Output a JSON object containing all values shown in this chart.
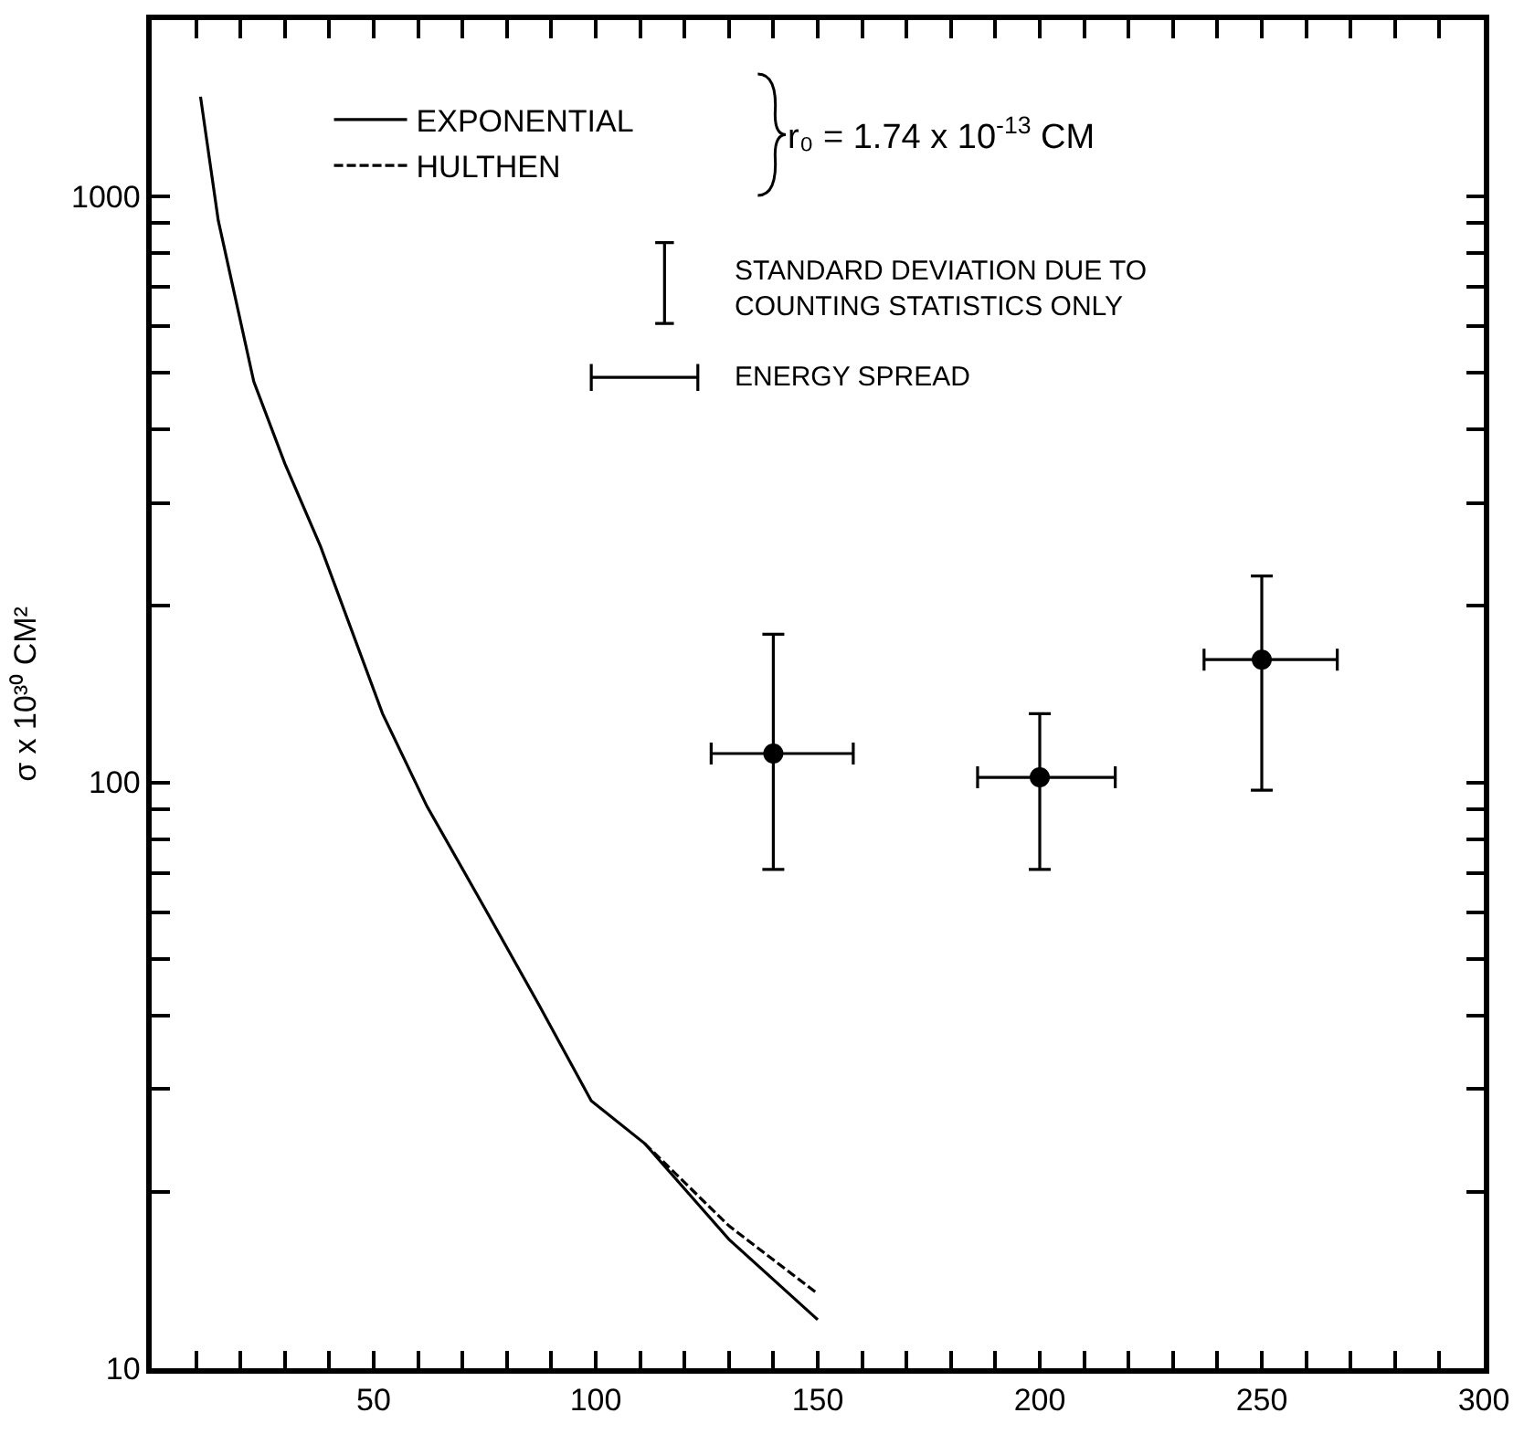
{
  "chart_data": {
    "type": "line",
    "xlabel": null,
    "ylabel": "σ x 10³⁰ CM²",
    "series": [
      {
        "name": "EXPONENTIAL",
        "color": "#000000",
        "line_style": "solid",
        "marker": "none",
        "x": [
          11,
          15,
          23,
          30,
          38,
          52,
          62,
          75,
          87,
          99,
          111,
          130,
          150
        ],
        "values": [
          1480,
          910,
          483,
          350,
          253,
          131,
          91,
          61,
          42,
          28.6,
          24.2,
          16.6,
          12.1
        ]
      },
      {
        "name": "HULTHEN",
        "color": "#000000",
        "line_style": "dashed",
        "marker": "none",
        "x": [
          111,
          130,
          150
        ],
        "values": [
          24.2,
          17.5,
          13.4
        ]
      },
      {
        "type": "scatter",
        "color": "#000000",
        "marker": "circle",
        "x": [
          140,
          200,
          250
        ],
        "values": [
          112,
          102,
          162
        ],
        "errors": [
          [
            71,
            179
          ],
          [
            71,
            131
          ],
          [
            97,
            225
          ]
        ],
        "xerrors": [
          [
            126,
            158
          ],
          [
            186,
            217
          ],
          [
            237,
            267
          ]
        ]
      }
    ],
    "annotations": [
      "r₀ = 1.74 x 10$^{-13}$ CM",
      "STANDARD DEVIATION DUE TO\nCOUNTING STATISTICS ONLY",
      "ENERGY SPREAD"
    ],
    "log": "y",
    "xlim": [
      0,
      300
    ],
    "xticks": [
      {
        "value": 10,
        "label": null
      },
      {
        "value": 20,
        "label": null
      },
      {
        "value": 30,
        "label": null
      },
      {
        "value": 40,
        "label": null
      },
      50,
      {
        "value": 60,
        "label": null
      },
      {
        "value": 70,
        "label": null
      },
      {
        "value": 80,
        "label": null
      },
      {
        "value": 90,
        "label": null
      },
      100,
      {
        "value": 110,
        "label": null
      },
      {
        "value": 120,
        "label": null
      },
      {
        "value": 130,
        "label": null
      },
      {
        "value": 140,
        "label": null
      },
      150,
      {
        "value": 160,
        "label": null
      },
      {
        "value": 170,
        "label": null
      },
      {
        "value": 180,
        "label": null
      },
      {
        "value": 190,
        "label": null
      },
      200,
      {
        "value": 210,
        "label": null
      },
      {
        "value": 220,
        "label": null
      },
      {
        "value": 230,
        "label": null
      },
      {
        "value": 240,
        "label": null
      },
      250,
      {
        "value": 260,
        "label": null
      },
      {
        "value": 270,
        "label": null
      },
      {
        "value": 280,
        "label": null
      },
      {
        "value": 290,
        "label": null
      },
      300
    ],
    "ylim": [
      10,
      2000
    ],
    "yticks": [
      10,
      {
        "value": 20,
        "label": null
      },
      {
        "value": 30,
        "label": null
      },
      {
        "value": 40,
        "label": null
      },
      {
        "value": 50,
        "label": null
      },
      {
        "value": 60,
        "label": null
      },
      {
        "value": 70,
        "label": null
      },
      {
        "value": 80,
        "label": null
      },
      {
        "value": 90,
        "label": null
      },
      100,
      {
        "value": 200,
        "label": null
      },
      {
        "value": 300,
        "label": null
      },
      {
        "value": 400,
        "label": null
      },
      {
        "value": 500,
        "label": null
      },
      {
        "value": 600,
        "label": null
      },
      {
        "value": 700,
        "label": null
      },
      {
        "value": 800,
        "label": null
      },
      {
        "value": 900,
        "label": null
      },
      1000
    ],
    "legend": "top left"
  }
}
